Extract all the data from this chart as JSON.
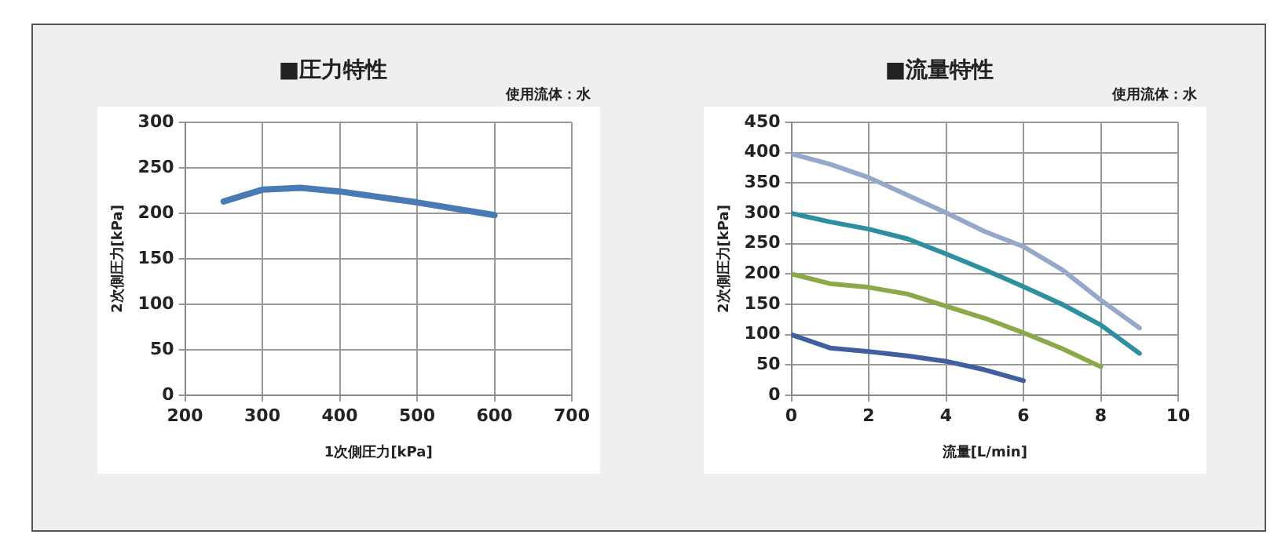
{
  "chart_data": [
    {
      "type": "line",
      "title": "■圧力特性",
      "subtitle": "使用流体：水",
      "xlabel": "1次側圧力[kPa]",
      "ylabel": "2次側圧力[kPa]",
      "x": [
        250,
        300,
        350,
        400,
        500,
        600
      ],
      "values": [
        213,
        226,
        228,
        224,
        212,
        198
      ],
      "color": "#4a7ab5",
      "xlim": [
        200,
        700
      ],
      "xticks": [
        200,
        300,
        400,
        500,
        600,
        700
      ],
      "ylim": [
        0,
        300
      ],
      "yticks": [
        0,
        50,
        100,
        150,
        200,
        250,
        300
      ],
      "grid": true,
      "marker": "none"
    },
    {
      "type": "line",
      "title": "■流量特性",
      "subtitle": "使用流体：水",
      "xlabel": "流量[L/min]",
      "ylabel": "2次側圧力[kPa]",
      "x": [
        0,
        1,
        2,
        3,
        4,
        5,
        6,
        7,
        8,
        9
      ],
      "series": [
        {
          "color": "#3f5f9f",
          "values": [
            100,
            78,
            72,
            65,
            56,
            42,
            24,
            null,
            null,
            null
          ]
        },
        {
          "color": "#8aaa4a",
          "values": [
            200,
            184,
            178,
            167,
            147,
            127,
            103,
            77,
            47,
            null
          ]
        },
        {
          "color": "#2e8fa0",
          "values": [
            300,
            286,
            274,
            258,
            233,
            207,
            179,
            150,
            116,
            69
          ]
        },
        {
          "color": "#95a8cc",
          "values": [
            398,
            381,
            359,
            330,
            301,
            270,
            245,
            207,
            157,
            111
          ]
        }
      ],
      "xlim": [
        0,
        10
      ],
      "xticks": [
        0,
        2,
        4,
        6,
        8,
        10
      ],
      "ylim": [
        0,
        450
      ],
      "yticks": [
        0,
        50,
        100,
        150,
        200,
        250,
        300,
        350,
        400,
        450
      ],
      "grid": true,
      "marker": "none"
    }
  ]
}
